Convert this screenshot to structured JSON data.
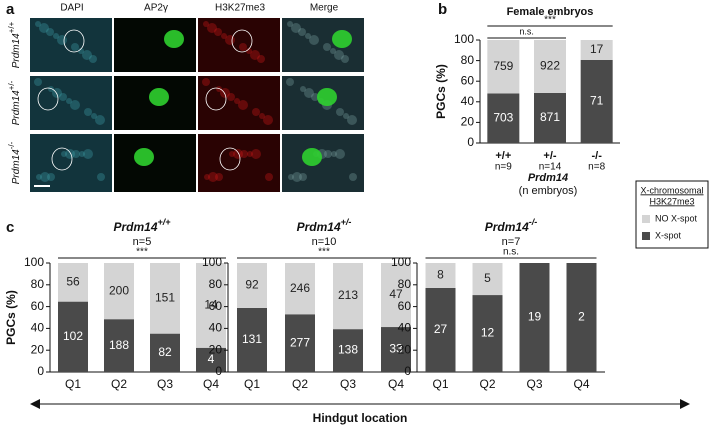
{
  "panels": [
    "a",
    "b",
    "c"
  ],
  "microscopy": {
    "columns": [
      "DAPI",
      "AP2γ",
      "H3K27me3",
      "Merge"
    ],
    "rows": [
      {
        "gene": "Prdm14",
        "genotype": "+/+"
      },
      {
        "gene": "Prdm14",
        "genotype": "+/-"
      },
      {
        "gene": "Prdm14",
        "genotype": "-/-"
      }
    ]
  },
  "legend": {
    "title": [
      "X-chromosomal",
      "H3K27me3"
    ]
  },
  "shared_xlabel": "Hindgut location",
  "chart_data": [
    {
      "type": "stacked_percent_bar",
      "title": "Female embryos",
      "ylabel": "PGCs (%)",
      "categories": [
        "+/+",
        "+/-",
        "-/-"
      ],
      "sublabels": [
        "n=9",
        "n=14",
        "n=8"
      ],
      "xlabel": "Prdm14",
      "xlabel_note": "(n embryos)",
      "annotations": [
        "***",
        "n.s."
      ],
      "ylim": [
        0,
        100
      ],
      "yticks": [
        0,
        20,
        40,
        60,
        80,
        100
      ],
      "series": [
        {
          "name": "X-spot",
          "color": "#4a4a4a",
          "values": [
            703,
            871,
            71
          ]
        },
        {
          "name": "NO X-spot",
          "color": "#d4d4d4",
          "values": [
            759,
            922,
            17
          ]
        }
      ]
    },
    {
      "type": "stacked_percent_bar",
      "title": "Prdm14",
      "genotype": "+/+",
      "subtitle": "n=5",
      "ylabel": "PGCs (%)",
      "categories": [
        "Q1",
        "Q2",
        "Q3",
        "Q4"
      ],
      "annotations": [
        "***"
      ],
      "ylim": [
        0,
        100
      ],
      "yticks": [
        0,
        20,
        40,
        60,
        80,
        100
      ],
      "series": [
        {
          "name": "X-spot",
          "color": "#4a4a4a",
          "values": [
            102,
            188,
            82,
            4
          ]
        },
        {
          "name": "NO X-spot",
          "color": "#d4d4d4",
          "values": [
            56,
            200,
            151,
            14
          ]
        }
      ]
    },
    {
      "type": "stacked_percent_bar",
      "title": "Prdm14",
      "genotype": "+/-",
      "subtitle": "n=10",
      "categories": [
        "Q1",
        "Q2",
        "Q3",
        "Q4"
      ],
      "annotations": [
        "***"
      ],
      "ylim": [
        0,
        100
      ],
      "yticks": [
        0,
        20,
        40,
        60,
        80,
        100
      ],
      "series": [
        {
          "name": "X-spot",
          "color": "#4a4a4a",
          "values": [
            131,
            277,
            138,
            33
          ]
        },
        {
          "name": "NO X-spot",
          "color": "#d4d4d4",
          "values": [
            92,
            246,
            213,
            47
          ]
        }
      ]
    },
    {
      "type": "stacked_percent_bar",
      "title": "Prdm14",
      "genotype": "-/-",
      "subtitle": "n=7",
      "categories": [
        "Q1",
        "Q2",
        "Q3",
        "Q4"
      ],
      "annotations": [
        "n.s."
      ],
      "ylim": [
        0,
        100
      ],
      "yticks": [
        0,
        20,
        40,
        60,
        80,
        100
      ],
      "series": [
        {
          "name": "X-spot",
          "color": "#4a4a4a",
          "values": [
            27,
            12,
            19,
            2
          ]
        },
        {
          "name": "NO X-spot",
          "color": "#d4d4d4",
          "values": [
            8,
            5,
            null,
            null
          ]
        }
      ]
    }
  ]
}
